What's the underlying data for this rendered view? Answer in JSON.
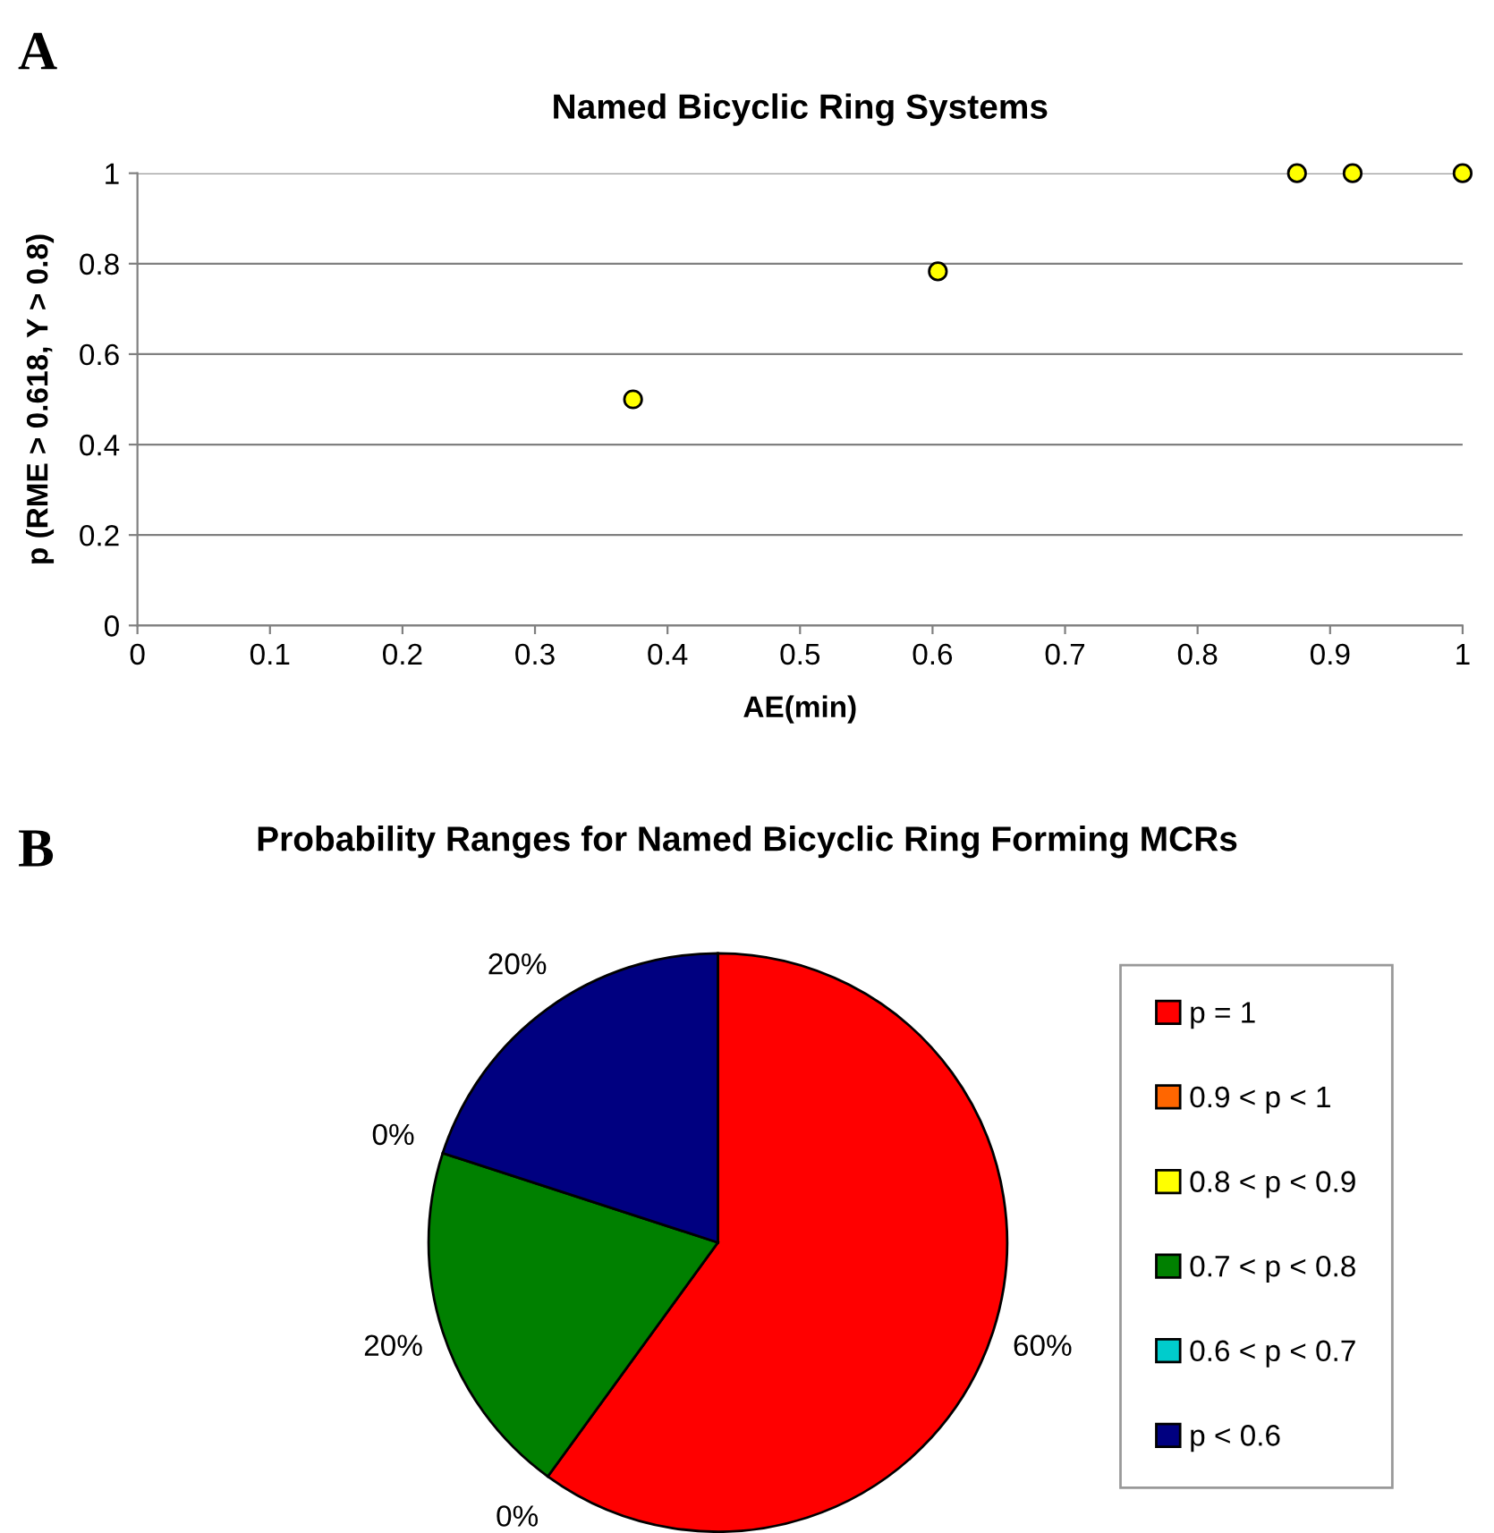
{
  "chart_data": [
    {
      "type": "scatter",
      "title": "Named Bicyclic Ring Systems",
      "xlabel": "AE(min)",
      "ylabel": "p (RME > 0.618, Y > 0.8)",
      "annotations": [
        "A"
      ],
      "x": [
        0.374,
        0.604,
        0.875,
        0.917,
        1.0
      ],
      "series": [
        {
          "color": "#ffff00",
          "values": [
            0.5,
            0.783,
            1.0,
            1.0,
            1.0
          ]
        }
      ],
      "xlim": [
        0,
        1
      ],
      "xticks": [
        0,
        0.1,
        0.2,
        0.3,
        0.4,
        0.5,
        0.6,
        0.7,
        0.8,
        0.9,
        1
      ],
      "ylim": [
        0,
        1
      ],
      "yticks": [
        0,
        0.2,
        0.4,
        0.6,
        0.8,
        1
      ],
      "grid": "y",
      "marker": "circle"
    },
    {
      "type": "pie",
      "title": "Probability Ranges for Named Bicyclic Ring Forming MCRs",
      "annotations": [
        "B"
      ],
      "categories": [
        "p = 1",
        "0.9 < p < 1",
        "0.8 < p < 0.9",
        "0.7 < p < 0.8",
        "0.6 < p < 0.7",
        "p < 0.6"
      ],
      "values": [
        60,
        0,
        0,
        20,
        0,
        20
      ],
      "colors": [
        "#ff0000",
        "#ff6600",
        "#ffff00",
        "#008000",
        "#00cccc",
        "#000080"
      ],
      "value_labels": [
        "60%",
        "0%",
        null,
        "20%",
        "0%",
        "20%"
      ],
      "legend": "right"
    }
  ]
}
